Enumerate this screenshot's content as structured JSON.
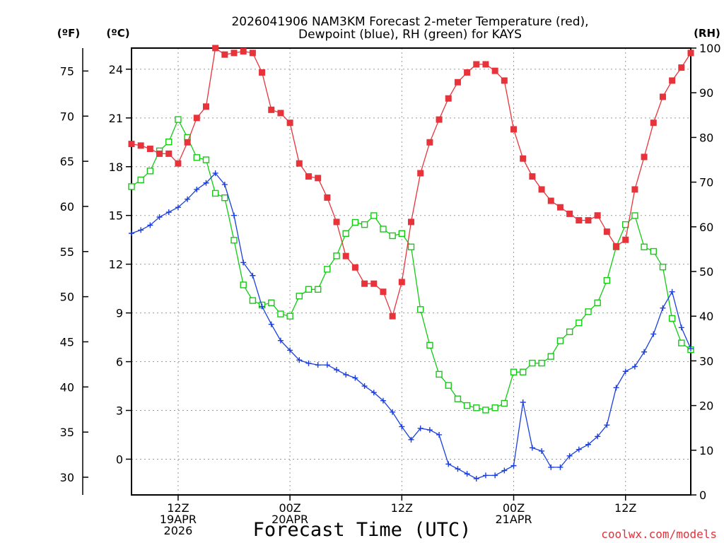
{
  "chart_data": {
    "type": "line",
    "title_line1": "2026041906 NAM3KM Forecast 2-meter Temperature (red),",
    "title_line2": "Dewpoint (blue), RH (green) for KAYS",
    "xlabel": "Forecast Time (UTC)",
    "credit": "coolwx.com/models",
    "x_range_hours": [
      7,
      67
    ],
    "x_ticks": [
      {
        "hour": 12,
        "label": [
          "12Z",
          "19APR",
          "2026"
        ]
      },
      {
        "hour": 24,
        "label": [
          "00Z",
          "20APR"
        ]
      },
      {
        "hour": 36,
        "label": [
          "12Z"
        ]
      },
      {
        "hour": 48,
        "label": [
          "00Z",
          "21APR"
        ]
      },
      {
        "hour": 60,
        "label": [
          "12Z"
        ]
      }
    ],
    "axes": {
      "celsius": {
        "unit_label": "(ºC)",
        "range": [
          -2.2,
          25.3
        ],
        "ticks": [
          0,
          3,
          6,
          9,
          12,
          15,
          18,
          21,
          24
        ]
      },
      "fahrenheit": {
        "unit_label": "(ºF)",
        "ticks": [
          30,
          35,
          40,
          45,
          50,
          55,
          60,
          65,
          70,
          75
        ]
      },
      "rh": {
        "unit_label": "(RH)",
        "range": [
          0,
          100
        ],
        "ticks": [
          0,
          10,
          20,
          30,
          40,
          50,
          60,
          70,
          80,
          90,
          100
        ]
      }
    },
    "colors": {
      "temperature": "#e8333b",
      "dewpoint": "#1a3fe0",
      "rh": "#12cc12",
      "grid": "#9a9a9a"
    },
    "series": [
      {
        "name": "2-meter Temperature",
        "units": "C",
        "x": [
          7,
          8,
          9,
          10,
          11,
          12,
          13,
          14,
          15,
          16,
          17,
          18,
          19,
          20,
          21,
          22,
          23,
          24,
          25,
          26,
          27,
          28,
          29,
          30,
          31,
          32,
          33,
          34,
          35,
          36,
          37,
          38,
          39,
          40,
          41,
          42,
          43,
          44,
          45,
          46,
          47,
          48,
          49,
          50,
          51,
          52,
          53,
          54,
          55,
          56,
          57,
          58,
          59,
          60,
          61,
          62,
          63,
          64,
          65,
          66,
          67
        ],
        "values": [
          19.4,
          19.3,
          19.1,
          18.8,
          18.8,
          18.2,
          19.5,
          21.0,
          21.7,
          25.3,
          24.9,
          25.0,
          25.1,
          25.0,
          23.8,
          21.5,
          21.3,
          20.7,
          18.2,
          17.4,
          17.3,
          16.1,
          14.6,
          12.5,
          11.8,
          10.8,
          10.8,
          10.3,
          8.8,
          10.9,
          14.6,
          17.6,
          19.5,
          20.9,
          22.2,
          23.2,
          23.8,
          24.3,
          24.3,
          23.9,
          23.3,
          20.3,
          18.5,
          17.4,
          16.6,
          15.9,
          15.5,
          15.1,
          14.7,
          14.7,
          15.0,
          14.0,
          13.1,
          13.5,
          16.6,
          18.6,
          20.7,
          22.3,
          23.3,
          24.1,
          25.0
        ]
      },
      {
        "name": "Dewpoint",
        "units": "C",
        "x": [
          7,
          8,
          9,
          10,
          11,
          12,
          13,
          14,
          15,
          16,
          17,
          18,
          19,
          20,
          21,
          22,
          23,
          24,
          25,
          26,
          27,
          28,
          29,
          30,
          31,
          32,
          33,
          34,
          35,
          36,
          37,
          38,
          39,
          40,
          41,
          42,
          43,
          44,
          45,
          46,
          47,
          48,
          49,
          50,
          51,
          52,
          53,
          54,
          55,
          56,
          57,
          58,
          59,
          60,
          61,
          62,
          63,
          64,
          65,
          66,
          67
        ],
        "values": [
          13.9,
          14.1,
          14.4,
          14.9,
          15.2,
          15.5,
          16.0,
          16.6,
          17.0,
          17.6,
          16.9,
          15.0,
          12.1,
          11.3,
          9.4,
          8.3,
          7.3,
          6.7,
          6.1,
          5.9,
          5.8,
          5.8,
          5.5,
          5.2,
          5.0,
          4.5,
          4.1,
          3.6,
          2.9,
          2.0,
          1.2,
          1.9,
          1.8,
          1.5,
          -0.3,
          -0.6,
          -0.9,
          -1.2,
          -1.0,
          -1.0,
          -0.7,
          -0.4,
          3.5,
          0.7,
          0.5,
          -0.5,
          -0.5,
          0.2,
          0.6,
          0.9,
          1.4,
          2.1,
          4.4,
          5.4,
          5.7,
          6.6,
          7.7,
          9.3,
          10.3,
          8.1,
          6.8
        ]
      },
      {
        "name": "Relative Humidity",
        "units": "%",
        "x": [
          7,
          8,
          9,
          10,
          11,
          12,
          13,
          14,
          15,
          16,
          17,
          18,
          19,
          20,
          21,
          22,
          23,
          24,
          25,
          26,
          27,
          28,
          29,
          30,
          31,
          32,
          33,
          34,
          35,
          36,
          37,
          38,
          39,
          40,
          41,
          42,
          43,
          44,
          45,
          46,
          47,
          48,
          49,
          50,
          51,
          52,
          53,
          54,
          55,
          56,
          57,
          58,
          59,
          60,
          61,
          62,
          63,
          64,
          65,
          66,
          67
        ],
        "values": [
          69,
          70.5,
          72.5,
          77,
          79,
          84,
          80,
          75.5,
          75,
          67.5,
          66.5,
          57,
          47,
          43.5,
          42.5,
          43,
          40.5,
          40,
          44.5,
          46,
          46,
          50.5,
          53.5,
          58.5,
          61,
          60.5,
          62.5,
          59.5,
          58,
          58.5,
          55.5,
          41.5,
          33.5,
          27,
          24.5,
          21.5,
          20,
          19.5,
          19,
          19.5,
          20.5,
          27.5,
          27.5,
          29.5,
          29.5,
          31,
          34.5,
          36.5,
          38.5,
          41,
          43,
          48,
          55.5,
          60.5,
          62.5,
          55.5,
          54.5,
          51,
          39.5,
          34,
          32.5
        ]
      }
    ]
  }
}
